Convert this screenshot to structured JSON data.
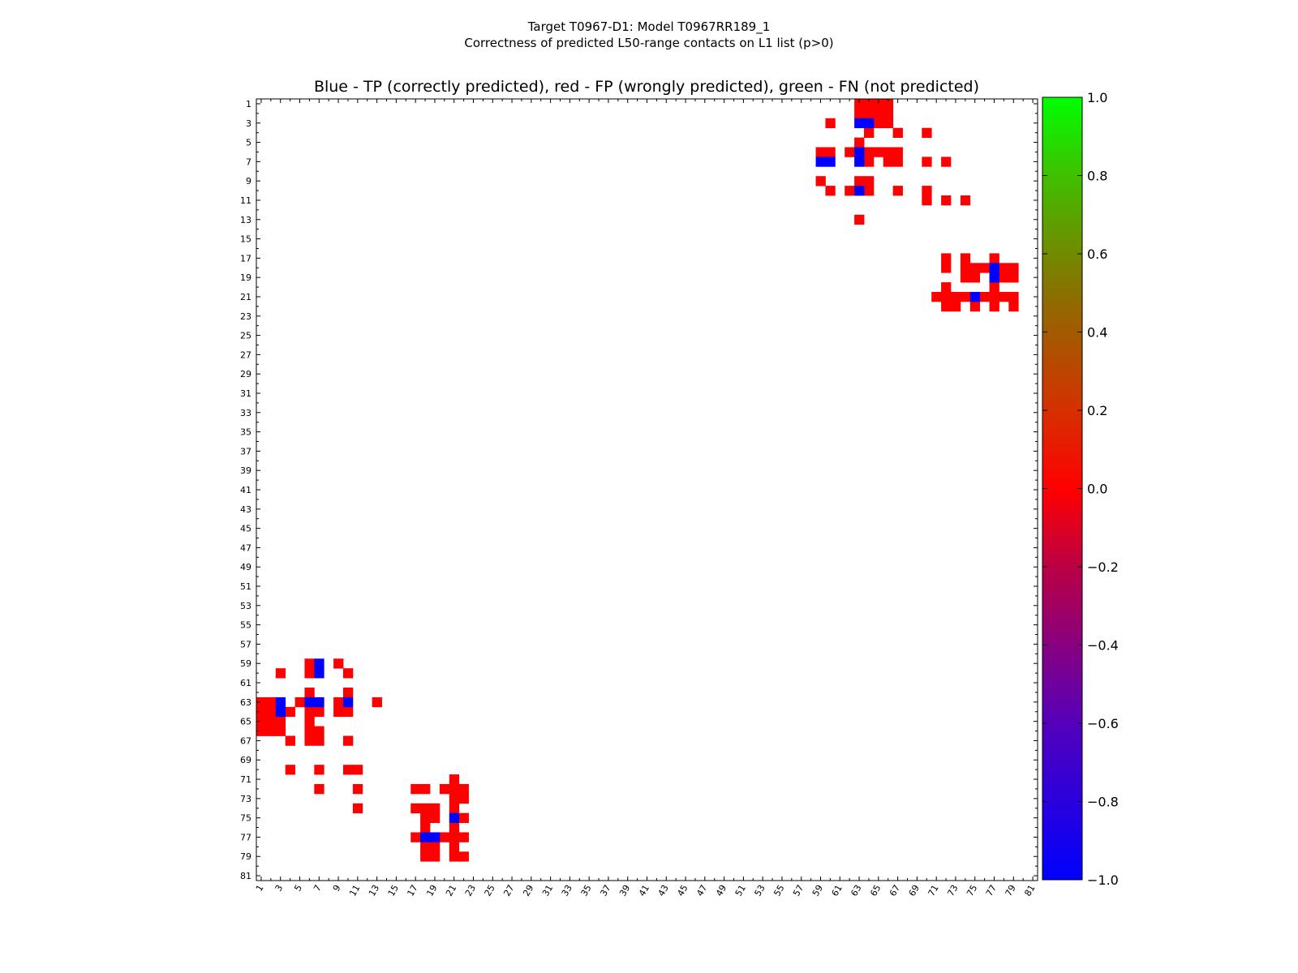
{
  "chart_data": {
    "type": "heatmap",
    "suptitle_line1": "Target T0967-D1: Model T0967RR189_1",
    "suptitle_line2": "Correctness of predicted L50-range contacts on L1 list (p>0)",
    "title": "Blue - TP (correctly predicted), red - FP (wrongly predicted), green - FN (not predicted)",
    "xlabel": "",
    "ylabel": "",
    "n": 81,
    "xlim": [
      1,
      81
    ],
    "ylim": [
      81,
      1
    ],
    "tick_labels": [
      "1",
      "3",
      "5",
      "7",
      "9",
      "11",
      "13",
      "15",
      "17",
      "19",
      "21",
      "23",
      "25",
      "27",
      "29",
      "31",
      "33",
      "35",
      "37",
      "39",
      "41",
      "43",
      "45",
      "47",
      "49",
      "51",
      "53",
      "55",
      "57",
      "59",
      "61",
      "63",
      "65",
      "67",
      "69",
      "71",
      "73",
      "75",
      "77",
      "79",
      "81"
    ],
    "colorbar": {
      "min": -1.0,
      "max": 1.0,
      "tick_labels": [
        "1.0",
        "0.8",
        "0.6",
        "0.4",
        "0.2",
        "0.0",
        "−0.2",
        "−0.4",
        "−0.6",
        "−0.8",
        "−1.0"
      ],
      "colors": [
        "#0000ff",
        "#ff0000",
        "#00ff00"
      ]
    },
    "colors": {
      "tp": "#0000ff",
      "fp": "#ff0000",
      "fn": "#00ff00"
    },
    "tp_cells": [
      [
        3,
        63
      ],
      [
        3,
        64
      ],
      [
        7,
        59
      ],
      [
        7,
        60
      ],
      [
        6,
        63
      ],
      [
        7,
        63
      ],
      [
        10,
        63
      ],
      [
        19,
        77
      ],
      [
        18,
        77
      ],
      [
        21,
        75
      ]
    ],
    "fp_cells": [
      [
        1,
        63
      ],
      [
        1,
        64
      ],
      [
        1,
        65
      ],
      [
        1,
        66
      ],
      [
        2,
        63
      ],
      [
        2,
        64
      ],
      [
        2,
        65
      ],
      [
        2,
        66
      ],
      [
        3,
        60
      ],
      [
        3,
        65
      ],
      [
        3,
        66
      ],
      [
        4,
        64
      ],
      [
        4,
        67
      ],
      [
        4,
        70
      ],
      [
        5,
        63
      ],
      [
        6,
        59
      ],
      [
        6,
        60
      ],
      [
        6,
        62
      ],
      [
        6,
        64
      ],
      [
        6,
        65
      ],
      [
        6,
        66
      ],
      [
        6,
        67
      ],
      [
        7,
        64
      ],
      [
        7,
        66
      ],
      [
        7,
        67
      ],
      [
        7,
        70
      ],
      [
        7,
        72
      ],
      [
        9,
        59
      ],
      [
        9,
        63
      ],
      [
        9,
        64
      ],
      [
        10,
        60
      ],
      [
        10,
        62
      ],
      [
        10,
        64
      ],
      [
        10,
        67
      ],
      [
        10,
        70
      ],
      [
        11,
        70
      ],
      [
        11,
        72
      ],
      [
        11,
        74
      ],
      [
        13,
        63
      ],
      [
        17,
        72
      ],
      [
        17,
        74
      ],
      [
        17,
        77
      ],
      [
        18,
        72
      ],
      [
        18,
        74
      ],
      [
        18,
        75
      ],
      [
        18,
        76
      ],
      [
        18,
        78
      ],
      [
        18,
        79
      ],
      [
        19,
        74
      ],
      [
        19,
        75
      ],
      [
        19,
        78
      ],
      [
        19,
        79
      ],
      [
        20,
        72
      ],
      [
        20,
        77
      ],
      [
        21,
        71
      ],
      [
        21,
        72
      ],
      [
        21,
        73
      ],
      [
        21,
        74
      ],
      [
        21,
        76
      ],
      [
        21,
        77
      ],
      [
        21,
        78
      ],
      [
        21,
        79
      ],
      [
        22,
        72
      ],
      [
        22,
        73
      ],
      [
        22,
        75
      ],
      [
        22,
        77
      ],
      [
        22,
        79
      ]
    ]
  }
}
